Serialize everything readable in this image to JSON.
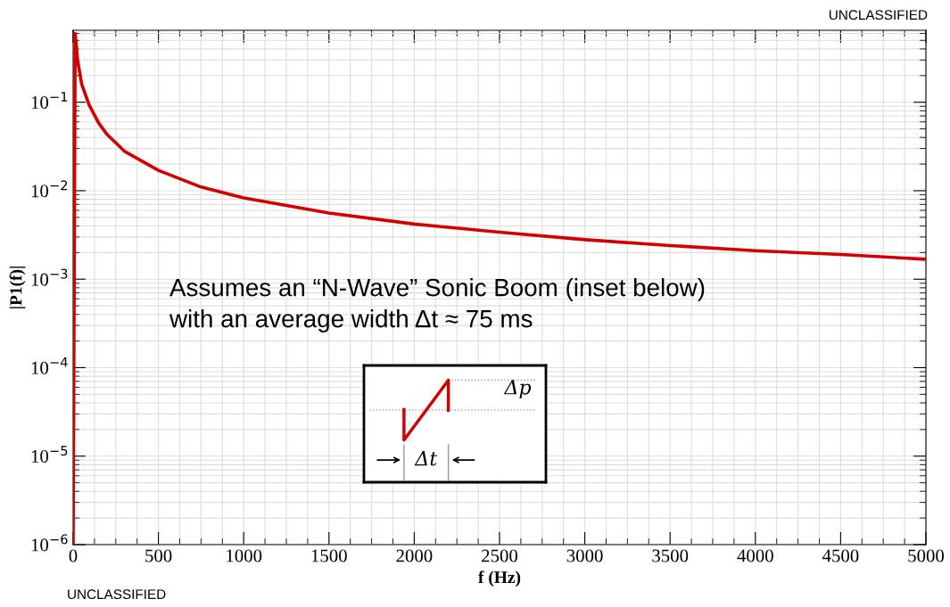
{
  "chart_data": {
    "type": "line",
    "xlabel": "f (Hz)",
    "ylabel": "|P1(f)|",
    "log": "y",
    "grid": true,
    "legend": false,
    "marker": "none",
    "line_style": "solid",
    "xlim": [
      0,
      5000
    ],
    "xticks": [
      0,
      500,
      1000,
      1500,
      2000,
      2500,
      3000,
      3500,
      4000,
      4500,
      5000
    ],
    "ylim": [
      1e-06,
      0.65
    ],
    "yticks": [
      {
        "value": 1e-06,
        "label": "10$^{−6}$"
      },
      {
        "value": 1e-05,
        "label": "10$^{−5}$"
      },
      {
        "value": 0.0001,
        "label": "10$^{−4}$"
      },
      {
        "value": 0.001,
        "label": "10$^{−3}$"
      },
      {
        "value": 0.01,
        "label": "10$^{−2}$"
      },
      {
        "value": 0.1,
        "label": "10$^{−1}$"
      }
    ],
    "series": [
      {
        "color": "#d40000",
        "x": [
          0,
          12,
          26,
          50,
          94,
          150,
          200,
          300,
          500,
          750,
          1000,
          1500,
          2000,
          2500,
          3000,
          3500,
          4000,
          4500,
          5000
        ],
        "values": [
          1e-06,
          0.6,
          0.3,
          0.16,
          0.093,
          0.058,
          0.043,
          0.028,
          0.017,
          0.011,
          0.0083,
          0.0056,
          0.0042,
          0.0034,
          0.0028,
          0.0024,
          0.0021,
          0.0019,
          0.00168
        ]
      }
    ],
    "annotations": [
      "UNCLASSIFIED",
      "UNCLASSIFIED",
      "Assumes an “N-Wave” Sonic Boom (inset below)",
      "with an average width Δt ≈ 75 ms",
      "Δp",
      "Δt"
    ]
  }
}
